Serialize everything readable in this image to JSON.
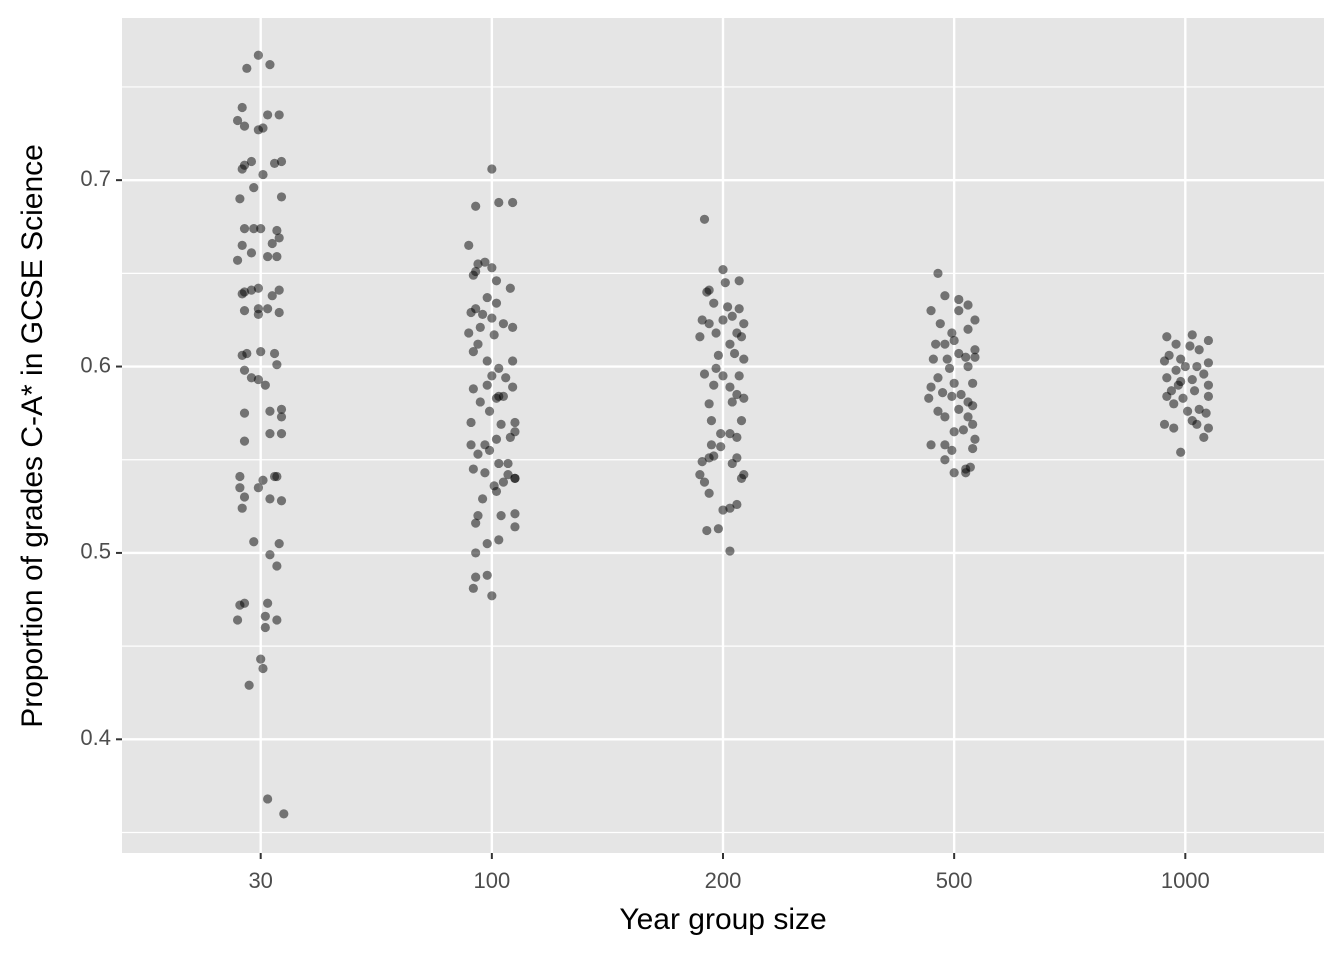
{
  "chart_data": {
    "type": "scatter",
    "x_label": "Year group size",
    "y_label": "Proportion of grades C-A* in GCSE Science",
    "color": "#000000",
    "alpha": 0.5,
    "grid": true,
    "xlim": [
      0.4,
      5.6
    ],
    "xticks": [
      {
        "value": 1,
        "label": "30"
      },
      {
        "value": 2,
        "label": "100"
      },
      {
        "value": 3,
        "label": "200"
      },
      {
        "value": 4,
        "label": "500"
      },
      {
        "value": 5,
        "label": "1000"
      }
    ],
    "ylim": [
      0.339,
      0.787
    ],
    "yticks": [
      0.4,
      0.5,
      0.6,
      0.7
    ],
    "y_minor_ticks": [
      0.35,
      0.45,
      0.55,
      0.65,
      0.75
    ],
    "series": [
      {
        "x": [
          0.99,
          0.94,
          1.04,
          0.92,
          0.9,
          0.93,
          1.03,
          1.08,
          0.99,
          1.01,
          0.92,
          0.96,
          0.93,
          1.06,
          1.09,
          0.97,
          1.01,
          1.09,
          0.91,
          0.93,
          0.97,
          1.0,
          1.07,
          1.08,
          0.92,
          0.96,
          1.05,
          1.03,
          0.9,
          1.07,
          0.93,
          0.96,
          0.99,
          0.92,
          1.08,
          1.05,
          0.93,
          0.99,
          1.03,
          1.08,
          0.99,
          0.92,
          0.94,
          1.0,
          1.06,
          0.93,
          0.96,
          0.99,
          1.02,
          1.07,
          0.93,
          1.04,
          1.09,
          1.09,
          0.93,
          1.04,
          1.09,
          0.91,
          1.06,
          1.07,
          0.91,
          1.01,
          0.93,
          0.99,
          1.04,
          1.09,
          0.92,
          0.97,
          1.08,
          1.04,
          1.07,
          0.93,
          0.91,
          1.03,
          1.02,
          0.9,
          1.02,
          1.07,
          1.0,
          1.01,
          0.95,
          1.03,
          1.1
        ],
        "values": [
          0.767,
          0.76,
          0.762,
          0.739,
          0.732,
          0.729,
          0.735,
          0.735,
          0.727,
          0.728,
          0.706,
          0.71,
          0.708,
          0.709,
          0.71,
          0.696,
          0.703,
          0.691,
          0.69,
          0.674,
          0.674,
          0.674,
          0.673,
          0.669,
          0.665,
          0.661,
          0.666,
          0.659,
          0.657,
          0.659,
          0.64,
          0.641,
          0.642,
          0.639,
          0.641,
          0.638,
          0.63,
          0.631,
          0.631,
          0.629,
          0.628,
          0.606,
          0.607,
          0.608,
          0.607,
          0.598,
          0.594,
          0.593,
          0.59,
          0.601,
          0.575,
          0.576,
          0.577,
          0.573,
          0.56,
          0.564,
          0.564,
          0.541,
          0.541,
          0.541,
          0.535,
          0.539,
          0.53,
          0.535,
          0.529,
          0.528,
          0.524,
          0.506,
          0.505,
          0.499,
          0.493,
          0.473,
          0.472,
          0.473,
          0.466,
          0.464,
          0.46,
          0.464,
          0.443,
          0.438,
          0.429,
          0.368,
          0.36
        ]
      },
      {
        "x": [
          2.0,
          1.93,
          2.03,
          2.09,
          1.9,
          1.94,
          1.97,
          1.93,
          2.0,
          2.02,
          1.92,
          2.08,
          1.98,
          1.93,
          2.02,
          1.91,
          1.96,
          2.0,
          2.05,
          2.09,
          1.9,
          1.95,
          2.01,
          1.92,
          1.94,
          1.98,
          2.09,
          2.03,
          2.0,
          2.06,
          1.92,
          1.98,
          2.09,
          1.95,
          2.02,
          2.03,
          2.05,
          1.99,
          1.91,
          2.04,
          2.1,
          2.1,
          2.02,
          1.97,
          1.91,
          1.99,
          1.94,
          2.08,
          1.92,
          1.97,
          2.03,
          2.07,
          2.07,
          2.1,
          2.1,
          2.05,
          2.01,
          2.02,
          1.96,
          2.1,
          1.94,
          2.04,
          2.1,
          1.93,
          1.98,
          2.03,
          1.93,
          1.93,
          1.98,
          1.92,
          2.0
        ],
        "values": [
          0.706,
          0.686,
          0.688,
          0.688,
          0.665,
          0.655,
          0.656,
          0.651,
          0.653,
          0.646,
          0.649,
          0.642,
          0.637,
          0.631,
          0.634,
          0.629,
          0.628,
          0.626,
          0.623,
          0.621,
          0.618,
          0.621,
          0.617,
          0.608,
          0.612,
          0.603,
          0.603,
          0.599,
          0.595,
          0.594,
          0.588,
          0.59,
          0.589,
          0.581,
          0.583,
          0.584,
          0.584,
          0.576,
          0.57,
          0.569,
          0.57,
          0.565,
          0.561,
          0.558,
          0.558,
          0.555,
          0.553,
          0.562,
          0.545,
          0.543,
          0.548,
          0.548,
          0.542,
          0.54,
          0.54,
          0.538,
          0.536,
          0.533,
          0.529,
          0.521,
          0.52,
          0.52,
          0.514,
          0.516,
          0.505,
          0.507,
          0.5,
          0.487,
          0.488,
          0.481,
          0.477
        ]
      },
      {
        "x": [
          2.92,
          3.0,
          3.07,
          3.01,
          2.93,
          2.94,
          2.96,
          3.02,
          3.07,
          2.91,
          3.0,
          3.04,
          3.09,
          2.94,
          2.9,
          2.97,
          3.03,
          3.06,
          3.08,
          2.98,
          3.05,
          3.09,
          2.97,
          2.92,
          3.0,
          3.07,
          3.03,
          2.96,
          3.06,
          2.94,
          3.09,
          3.04,
          2.95,
          3.08,
          2.99,
          3.03,
          3.06,
          2.95,
          2.99,
          2.94,
          3.06,
          2.91,
          2.96,
          3.04,
          2.9,
          3.09,
          3.08,
          2.92,
          2.94,
          3.06,
          3.03,
          3.0,
          2.93,
          2.98,
          3.03
        ],
        "values": [
          0.679,
          0.652,
          0.646,
          0.645,
          0.64,
          0.641,
          0.634,
          0.632,
          0.631,
          0.625,
          0.625,
          0.627,
          0.623,
          0.623,
          0.616,
          0.618,
          0.612,
          0.618,
          0.616,
          0.606,
          0.607,
          0.604,
          0.599,
          0.596,
          0.595,
          0.595,
          0.589,
          0.59,
          0.585,
          0.58,
          0.583,
          0.581,
          0.571,
          0.571,
          0.564,
          0.564,
          0.562,
          0.558,
          0.557,
          0.551,
          0.551,
          0.549,
          0.552,
          0.548,
          0.542,
          0.542,
          0.54,
          0.538,
          0.532,
          0.526,
          0.524,
          0.523,
          0.512,
          0.513,
          0.501
        ]
      },
      {
        "x": [
          3.93,
          3.96,
          4.02,
          4.06,
          3.9,
          4.02,
          4.09,
          3.94,
          3.99,
          4.06,
          3.92,
          3.96,
          4.0,
          4.09,
          4.02,
          3.91,
          3.97,
          4.05,
          4.09,
          3.98,
          4.06,
          3.93,
          3.9,
          4.0,
          4.08,
          3.95,
          3.99,
          4.03,
          4.06,
          3.89,
          4.08,
          3.93,
          4.02,
          4.06,
          3.96,
          4.08,
          4.04,
          4.0,
          3.9,
          3.96,
          4.09,
          3.99,
          4.08,
          3.96,
          4.05,
          4.07,
          4.0,
          4.05
        ],
        "values": [
          0.65,
          0.638,
          0.636,
          0.633,
          0.63,
          0.63,
          0.625,
          0.623,
          0.618,
          0.62,
          0.612,
          0.612,
          0.614,
          0.609,
          0.607,
          0.604,
          0.604,
          0.605,
          0.605,
          0.599,
          0.6,
          0.594,
          0.589,
          0.591,
          0.591,
          0.586,
          0.584,
          0.585,
          0.581,
          0.583,
          0.579,
          0.576,
          0.577,
          0.573,
          0.573,
          0.569,
          0.566,
          0.565,
          0.558,
          0.558,
          0.561,
          0.555,
          0.556,
          0.55,
          0.545,
          0.546,
          0.543,
          0.543
        ]
      },
      {
        "x": [
          4.92,
          5.03,
          5.1,
          4.96,
          5.02,
          4.93,
          5.06,
          4.98,
          5.1,
          4.91,
          5.0,
          5.05,
          4.96,
          5.08,
          4.92,
          4.98,
          5.03,
          5.1,
          4.97,
          4.94,
          5.04,
          4.92,
          4.99,
          5.1,
          4.95,
          5.06,
          5.01,
          5.09,
          4.91,
          4.95,
          5.03,
          5.05,
          5.1,
          5.08,
          4.98
        ],
        "values": [
          0.616,
          0.617,
          0.614,
          0.612,
          0.611,
          0.606,
          0.609,
          0.604,
          0.602,
          0.603,
          0.6,
          0.6,
          0.598,
          0.596,
          0.594,
          0.592,
          0.593,
          0.59,
          0.59,
          0.587,
          0.587,
          0.584,
          0.583,
          0.584,
          0.58,
          0.577,
          0.576,
          0.575,
          0.569,
          0.567,
          0.571,
          0.569,
          0.567,
          0.562,
          0.554
        ]
      }
    ]
  }
}
